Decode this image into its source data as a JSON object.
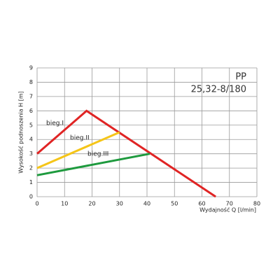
{
  "chart_data": {
    "type": "line",
    "title": "PP",
    "subtitle": "25,32-8/180",
    "x_label": "Wydajność Q [l/min]",
    "y_label": "Wysokość podnoszenia H [m]",
    "xlim": [
      0,
      80
    ],
    "xticks": [
      0,
      10,
      20,
      30,
      40,
      50,
      60,
      70,
      80
    ],
    "ylim": [
      0,
      9
    ],
    "yticks": [
      0,
      1,
      2,
      3,
      4,
      5,
      6,
      7,
      8,
      9
    ],
    "grid": true,
    "series": [
      {
        "name": "bieg.I",
        "color": "#e02424",
        "x": [
          0,
          18,
          65
        ],
        "values": [
          3,
          6,
          0
        ]
      },
      {
        "name": "bieg.II",
        "color": "#f5c518",
        "x": [
          0,
          30
        ],
        "values": [
          2,
          4.5
        ]
      },
      {
        "name": "bieg.III",
        "color": "#1e9a3e",
        "x": [
          0,
          41
        ],
        "values": [
          1.5,
          3
        ]
      }
    ]
  }
}
